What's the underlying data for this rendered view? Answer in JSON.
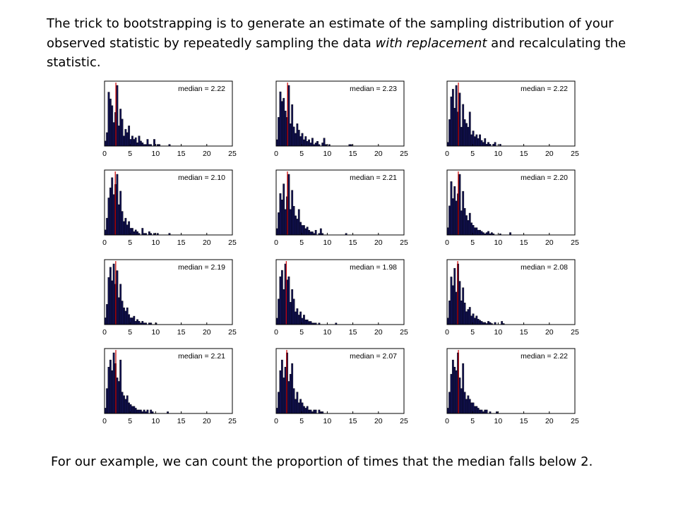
{
  "intro": {
    "part1": "The trick to bootstrapping is to generate an estimate of the sampling distribution of your observed statistic by repeatedly sampling the data ",
    "emphasis": "with replacement",
    "part2": " and recalculating the statistic."
  },
  "footer": "For our example, we can count the proportion of times that the median falls below 2.",
  "colors": {
    "bar_fill": "#101050",
    "median_line": "#cc0000",
    "axis": "#000000"
  },
  "chart_data": [
    {
      "type": "bar",
      "median_label": "median = 2.22",
      "median": 2.22,
      "xlim": [
        0,
        25
      ],
      "xticks": [
        0,
        5,
        10,
        15,
        20,
        25
      ],
      "bin_width": 0.33,
      "values": [
        3,
        8,
        32,
        28,
        24,
        14,
        20,
        36,
        12,
        22,
        16,
        6,
        10,
        8,
        12,
        4,
        6,
        4,
        5,
        2,
        6,
        3,
        2,
        1,
        1,
        4,
        1,
        1,
        0,
        4,
        0,
        1,
        1,
        0,
        0,
        0,
        0,
        0,
        1,
        0,
        0,
        0,
        0,
        0,
        0,
        0,
        0,
        0,
        0,
        0,
        0,
        0,
        0,
        0,
        0,
        0,
        0,
        0,
        0,
        0,
        0,
        0,
        0,
        0,
        0,
        0,
        0,
        0,
        0,
        0,
        0,
        0,
        0,
        0,
        0,
        0
      ]
    },
    {
      "type": "bar",
      "median_label": "median = 2.23",
      "median": 2.23,
      "xlim": [
        0,
        25
      ],
      "xticks": [
        0,
        5,
        10,
        15,
        20,
        25
      ],
      "bin_width": 0.33,
      "values": [
        4,
        18,
        34,
        28,
        30,
        22,
        18,
        38,
        14,
        26,
        12,
        8,
        14,
        10,
        6,
        8,
        4,
        6,
        3,
        4,
        2,
        5,
        1,
        2,
        3,
        1,
        0,
        2,
        5,
        1,
        0,
        1,
        0,
        0,
        0,
        0,
        0,
        0,
        0,
        0,
        0,
        0,
        0,
        1,
        1,
        0,
        0,
        0,
        0,
        0,
        0,
        0,
        0,
        0,
        0,
        0,
        0,
        0,
        0,
        0,
        0,
        0,
        0,
        0,
        0,
        0,
        0,
        0,
        0,
        0,
        0,
        0,
        0,
        0,
        0,
        0
      ]
    },
    {
      "type": "bar",
      "median_label": "median = 2.22",
      "median": 2.22,
      "xlim": [
        0,
        25
      ],
      "xticks": [
        0,
        5,
        10,
        15,
        20,
        25
      ],
      "bin_width": 0.33,
      "values": [
        2,
        14,
        26,
        30,
        20,
        32,
        18,
        28,
        10,
        22,
        14,
        12,
        10,
        18,
        6,
        8,
        5,
        6,
        4,
        6,
        3,
        2,
        4,
        1,
        2,
        1,
        0,
        1,
        2,
        0,
        0,
        1,
        0,
        0,
        0,
        0,
        0,
        0,
        0,
        0,
        0,
        0,
        0,
        0,
        0,
        0,
        0,
        0,
        0,
        0,
        0,
        0,
        0,
        0,
        0,
        0,
        0,
        0,
        0,
        0,
        0,
        0,
        0,
        0,
        0,
        0,
        0,
        0,
        0,
        0,
        0,
        0,
        0,
        0,
        0,
        0
      ]
    },
    {
      "type": "bar",
      "median_label": "median = 2.10",
      "median": 2.1,
      "xlim": [
        0,
        25
      ],
      "xticks": [
        0,
        5,
        10,
        15,
        20,
        25
      ],
      "bin_width": 0.33,
      "values": [
        3,
        10,
        22,
        28,
        34,
        24,
        30,
        36,
        18,
        26,
        14,
        8,
        10,
        6,
        8,
        4,
        4,
        2,
        3,
        2,
        1,
        0,
        4,
        1,
        1,
        0,
        2,
        1,
        0,
        1,
        0,
        1,
        0,
        0,
        0,
        0,
        0,
        0,
        1,
        0,
        0,
        0,
        0,
        0,
        0,
        0,
        0,
        0,
        0,
        0,
        0,
        0,
        0,
        0,
        0,
        0,
        0,
        0,
        0,
        0,
        0,
        0,
        0,
        0,
        0,
        0,
        0,
        0,
        0,
        0,
        0,
        0,
        0,
        0,
        0,
        0
      ]
    },
    {
      "type": "bar",
      "median_label": "median = 2.21",
      "median": 2.21,
      "xlim": [
        0,
        25
      ],
      "xticks": [
        0,
        5,
        10,
        15,
        20,
        25
      ],
      "bin_width": 0.33,
      "values": [
        4,
        14,
        26,
        22,
        32,
        16,
        24,
        38,
        16,
        28,
        18,
        12,
        10,
        16,
        8,
        6,
        6,
        4,
        5,
        3,
        2,
        2,
        1,
        3,
        0,
        1,
        4,
        1,
        0,
        0,
        0,
        0,
        0,
        0,
        0,
        0,
        0,
        0,
        0,
        0,
        0,
        1,
        0,
        0,
        0,
        0,
        0,
        0,
        0,
        0,
        0,
        0,
        0,
        0,
        0,
        0,
        0,
        0,
        0,
        0,
        0,
        0,
        0,
        0,
        0,
        0,
        0,
        0,
        0,
        0,
        0,
        0,
        0,
        0,
        0,
        0
      ]
    },
    {
      "type": "bar",
      "median_label": "median = 2.20",
      "median": 2.2,
      "xlim": [
        0,
        25
      ],
      "xticks": [
        0,
        5,
        10,
        15,
        20,
        25
      ],
      "bin_width": 0.33,
      "values": [
        6,
        24,
        44,
        30,
        40,
        28,
        34,
        50,
        20,
        36,
        22,
        16,
        12,
        18,
        10,
        8,
        6,
        6,
        4,
        4,
        3,
        2,
        1,
        2,
        3,
        1,
        2,
        1,
        0,
        0,
        0,
        1,
        0,
        0,
        0,
        0,
        0,
        2,
        0,
        0,
        0,
        0,
        0,
        0,
        0,
        0,
        0,
        0,
        0,
        0,
        0,
        0,
        0,
        0,
        0,
        0,
        0,
        0,
        0,
        0,
        0,
        0,
        0,
        0,
        0,
        0,
        0,
        0,
        0,
        0,
        0,
        0,
        0,
        0,
        0,
        0
      ]
    },
    {
      "type": "bar",
      "median_label": "median = 2.19",
      "median": 2.19,
      "xlim": [
        0,
        25
      ],
      "xticks": [
        0,
        5,
        10,
        15,
        20,
        25
      ],
      "bin_width": 0.33,
      "values": [
        4,
        12,
        28,
        34,
        26,
        36,
        24,
        32,
        16,
        24,
        14,
        10,
        8,
        10,
        6,
        4,
        4,
        5,
        2,
        3,
        2,
        1,
        2,
        1,
        1,
        0,
        1,
        1,
        0,
        0,
        1,
        0,
        0,
        0,
        0,
        0,
        0,
        0,
        0,
        0,
        0,
        0,
        0,
        0,
        0,
        0,
        0,
        0,
        0,
        0,
        0,
        0,
        0,
        0,
        0,
        0,
        0,
        0,
        0,
        0,
        0,
        0,
        0,
        0,
        0,
        0,
        0,
        0,
        0,
        0,
        0,
        0,
        0,
        0,
        0,
        0
      ]
    },
    {
      "type": "bar",
      "median_label": "median = 1.98",
      "median": 1.98,
      "xlim": [
        0,
        25
      ],
      "xticks": [
        0,
        5,
        10,
        15,
        20,
        25
      ],
      "bin_width": 0.33,
      "values": [
        4,
        16,
        30,
        34,
        22,
        38,
        28,
        30,
        14,
        22,
        16,
        8,
        10,
        6,
        8,
        4,
        6,
        3,
        3,
        2,
        2,
        1,
        1,
        1,
        0,
        1,
        0,
        0,
        0,
        0,
        0,
        0,
        0,
        0,
        0,
        1,
        0,
        0,
        0,
        0,
        0,
        0,
        0,
        0,
        0,
        0,
        0,
        0,
        0,
        0,
        0,
        0,
        0,
        0,
        0,
        0,
        0,
        0,
        0,
        0,
        0,
        0,
        0,
        0,
        0,
        0,
        0,
        0,
        0,
        0,
        0,
        0,
        0,
        0,
        0,
        0
      ]
    },
    {
      "type": "bar",
      "median_label": "median = 2.08",
      "median": 2.08,
      "xlim": [
        0,
        25
      ],
      "xticks": [
        0,
        5,
        10,
        15,
        20,
        25
      ],
      "bin_width": 0.33,
      "values": [
        6,
        22,
        44,
        36,
        52,
        30,
        56,
        40,
        22,
        34,
        20,
        12,
        14,
        16,
        8,
        10,
        6,
        8,
        5,
        4,
        3,
        2,
        2,
        1,
        3,
        2,
        1,
        0,
        2,
        0,
        0,
        0,
        3,
        1,
        0,
        0,
        0,
        0,
        0,
        0,
        0,
        0,
        0,
        0,
        0,
        0,
        0,
        0,
        0,
        0,
        0,
        0,
        0,
        0,
        0,
        0,
        0,
        0,
        0,
        0,
        0,
        0,
        0,
        0,
        0,
        0,
        0,
        0,
        0,
        0,
        0,
        0,
        0,
        0,
        0,
        0
      ]
    },
    {
      "type": "bar",
      "median_label": "median = 2.21",
      "median": 2.21,
      "xlim": [
        0,
        25
      ],
      "xticks": [
        0,
        5,
        10,
        15,
        20,
        25
      ],
      "bin_width": 0.33,
      "values": [
        3,
        14,
        26,
        30,
        24,
        34,
        28,
        20,
        18,
        30,
        12,
        10,
        8,
        10,
        6,
        5,
        4,
        4,
        3,
        2,
        2,
        2,
        1,
        2,
        1,
        2,
        0,
        2,
        1,
        0,
        0,
        0,
        0,
        0,
        0,
        0,
        0,
        1,
        0,
        0,
        0,
        0,
        0,
        0,
        0,
        0,
        0,
        0,
        0,
        0,
        0,
        0,
        0,
        0,
        0,
        0,
        0,
        0,
        0,
        0,
        0,
        0,
        0,
        0,
        0,
        0,
        0,
        0,
        0,
        0,
        0,
        0,
        0,
        0,
        0,
        0
      ]
    },
    {
      "type": "bar",
      "median_label": "median = 2.07",
      "median": 2.07,
      "xlim": [
        0,
        25
      ],
      "xticks": [
        0,
        5,
        10,
        15,
        20,
        25
      ],
      "bin_width": 0.33,
      "values": [
        3,
        12,
        24,
        30,
        20,
        26,
        34,
        18,
        22,
        28,
        14,
        8,
        12,
        6,
        8,
        6,
        4,
        3,
        4,
        2,
        2,
        1,
        2,
        2,
        0,
        2,
        1,
        1,
        0,
        0,
        0,
        0,
        0,
        0,
        0,
        0,
        0,
        0,
        0,
        0,
        0,
        0,
        0,
        0,
        0,
        0,
        0,
        0,
        0,
        0,
        0,
        0,
        0,
        0,
        0,
        0,
        0,
        0,
        0,
        0,
        0,
        0,
        0,
        0,
        0,
        0,
        0,
        0,
        0,
        0,
        0,
        0,
        0,
        0,
        0,
        0
      ]
    },
    {
      "type": "bar",
      "median_label": "median = 2.22",
      "median": 2.22,
      "xlim": [
        0,
        25
      ],
      "xticks": [
        0,
        5,
        10,
        15,
        20,
        25
      ],
      "bin_width": 0.33,
      "values": [
        3,
        12,
        22,
        30,
        26,
        24,
        34,
        20,
        14,
        28,
        12,
        8,
        10,
        8,
        6,
        6,
        4,
        4,
        3,
        2,
        2,
        1,
        2,
        2,
        0,
        1,
        0,
        0,
        0,
        1,
        0,
        0,
        0,
        0,
        0,
        0,
        0,
        0,
        0,
        0,
        0,
        0,
        0,
        0,
        0,
        0,
        0,
        0,
        0,
        0,
        0,
        0,
        0,
        0,
        0,
        0,
        0,
        0,
        0,
        0,
        0,
        0,
        0,
        0,
        0,
        0,
        0,
        0,
        0,
        0,
        0,
        0,
        0,
        0,
        0,
        0
      ]
    }
  ]
}
